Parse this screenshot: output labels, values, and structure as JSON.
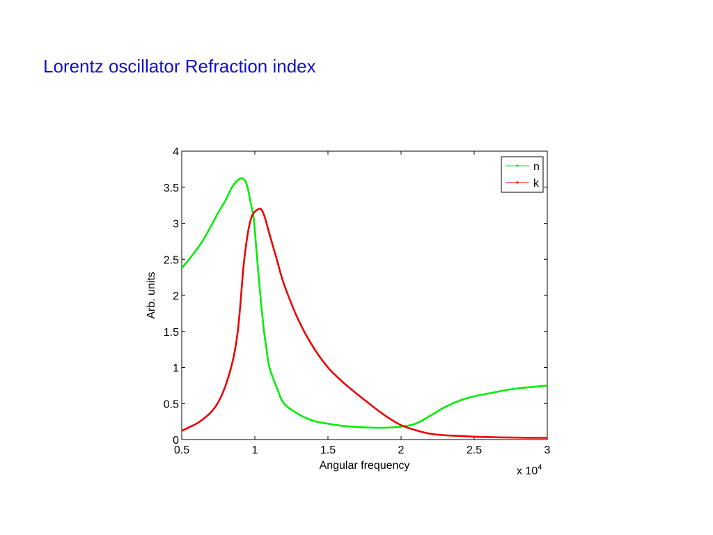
{
  "slide": {
    "title": "Lorentz oscillator Refraction index"
  },
  "chart_data": {
    "type": "line",
    "title": "",
    "xlabel": "Angular frequency",
    "ylabel": "Arb. units",
    "x_multiplier_label": "x 10",
    "x_multiplier_exponent": "4",
    "xlim": [
      0.5,
      3
    ],
    "ylim": [
      0,
      4
    ],
    "x_ticks": [
      0.5,
      1,
      1.5,
      2,
      2.5,
      3
    ],
    "x_tick_labels": [
      "0.5",
      "1",
      "1.5",
      "2",
      "2.5",
      "3"
    ],
    "y_ticks": [
      0,
      0.5,
      1,
      1.5,
      2,
      2.5,
      3,
      3.5,
      4
    ],
    "y_tick_labels": [
      "0",
      "0.5",
      "1",
      "1.5",
      "2",
      "2.5",
      "3",
      "3.5",
      "4"
    ],
    "grid": false,
    "legend_position": "top-right",
    "series": [
      {
        "name": "n",
        "color": "#00ee00",
        "x": [
          0.5,
          0.55,
          0.6,
          0.65,
          0.7,
          0.75,
          0.8,
          0.85,
          0.9,
          0.93,
          0.95,
          0.97,
          0.99,
          1.0,
          1.02,
          1.04,
          1.06,
          1.08,
          1.1,
          1.15,
          1.2,
          1.3,
          1.4,
          1.5,
          1.6,
          1.7,
          1.8,
          1.9,
          2.0,
          2.1,
          2.2,
          2.3,
          2.4,
          2.5,
          2.6,
          2.7,
          2.8,
          2.9,
          3.0
        ],
        "y": [
          2.38,
          2.5,
          2.63,
          2.78,
          2.96,
          3.15,
          3.32,
          3.52,
          3.62,
          3.6,
          3.5,
          3.3,
          3.1,
          2.9,
          2.4,
          1.95,
          1.55,
          1.25,
          1.0,
          0.72,
          0.5,
          0.35,
          0.26,
          0.22,
          0.19,
          0.175,
          0.165,
          0.165,
          0.18,
          0.22,
          0.33,
          0.45,
          0.54,
          0.6,
          0.64,
          0.68,
          0.71,
          0.73,
          0.75
        ]
      },
      {
        "name": "k",
        "color": "#ee0000",
        "x": [
          0.5,
          0.55,
          0.6,
          0.65,
          0.7,
          0.75,
          0.8,
          0.85,
          0.88,
          0.9,
          0.92,
          0.94,
          0.96,
          0.98,
          1.0,
          1.02,
          1.04,
          1.06,
          1.08,
          1.1,
          1.15,
          1.2,
          1.3,
          1.4,
          1.5,
          1.6,
          1.7,
          1.8,
          1.9,
          2.0,
          2.1,
          2.2,
          2.3,
          2.4,
          2.5,
          2.6,
          2.7,
          2.8,
          2.9,
          3.0
        ],
        "y": [
          0.12,
          0.17,
          0.22,
          0.29,
          0.38,
          0.52,
          0.75,
          1.1,
          1.45,
          1.85,
          2.35,
          2.7,
          2.95,
          3.1,
          3.16,
          3.19,
          3.2,
          3.13,
          3.0,
          2.85,
          2.5,
          2.15,
          1.65,
          1.28,
          1.0,
          0.8,
          0.63,
          0.47,
          0.32,
          0.2,
          0.13,
          0.08,
          0.06,
          0.05,
          0.04,
          0.035,
          0.03,
          0.027,
          0.025,
          0.024
        ]
      }
    ]
  }
}
